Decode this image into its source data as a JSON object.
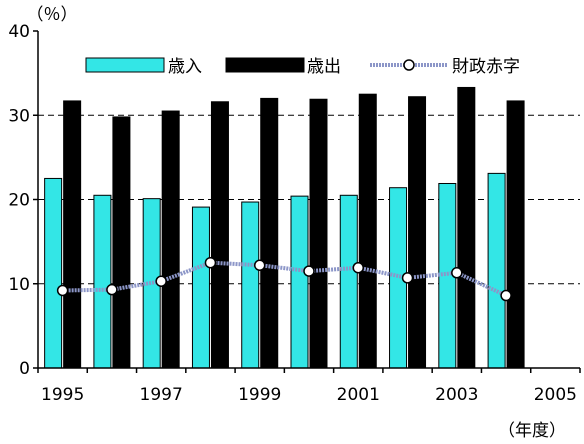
{
  "chart_data": {
    "type": "bar",
    "y_unit_label": "（％）",
    "x_unit_label": "（年度）",
    "ylim": [
      0,
      40
    ],
    "yticks": [
      "0",
      "10",
      "20",
      "30",
      "40"
    ],
    "x_tick_labels": [
      "1995",
      "1997",
      "1999",
      "2001",
      "2003",
      "2005"
    ],
    "categories": [
      "1995",
      "1996",
      "1997",
      "1998",
      "1999",
      "2000",
      "2001",
      "2002",
      "2003",
      "2004",
      "2005"
    ],
    "grid": "dashed-horizontal",
    "legend_position": "top",
    "series": [
      {
        "name": "歳入",
        "type": "bar",
        "color": "#33e6e6",
        "values": [
          22.5,
          20.5,
          20.1,
          19.1,
          19.7,
          20.4,
          20.5,
          21.4,
          21.9,
          23.1,
          null
        ]
      },
      {
        "name": "歳出",
        "type": "bar",
        "color": "#000000",
        "values": [
          31.7,
          29.8,
          30.5,
          31.6,
          32.0,
          31.9,
          32.5,
          32.2,
          33.3,
          31.7,
          null
        ]
      },
      {
        "name": "財政赤字",
        "type": "line",
        "color": "#8c96c8",
        "marker": "circle-open",
        "values": [
          9.2,
          9.3,
          10.3,
          12.5,
          12.2,
          11.5,
          11.9,
          10.7,
          11.3,
          8.6,
          null
        ]
      }
    ]
  }
}
